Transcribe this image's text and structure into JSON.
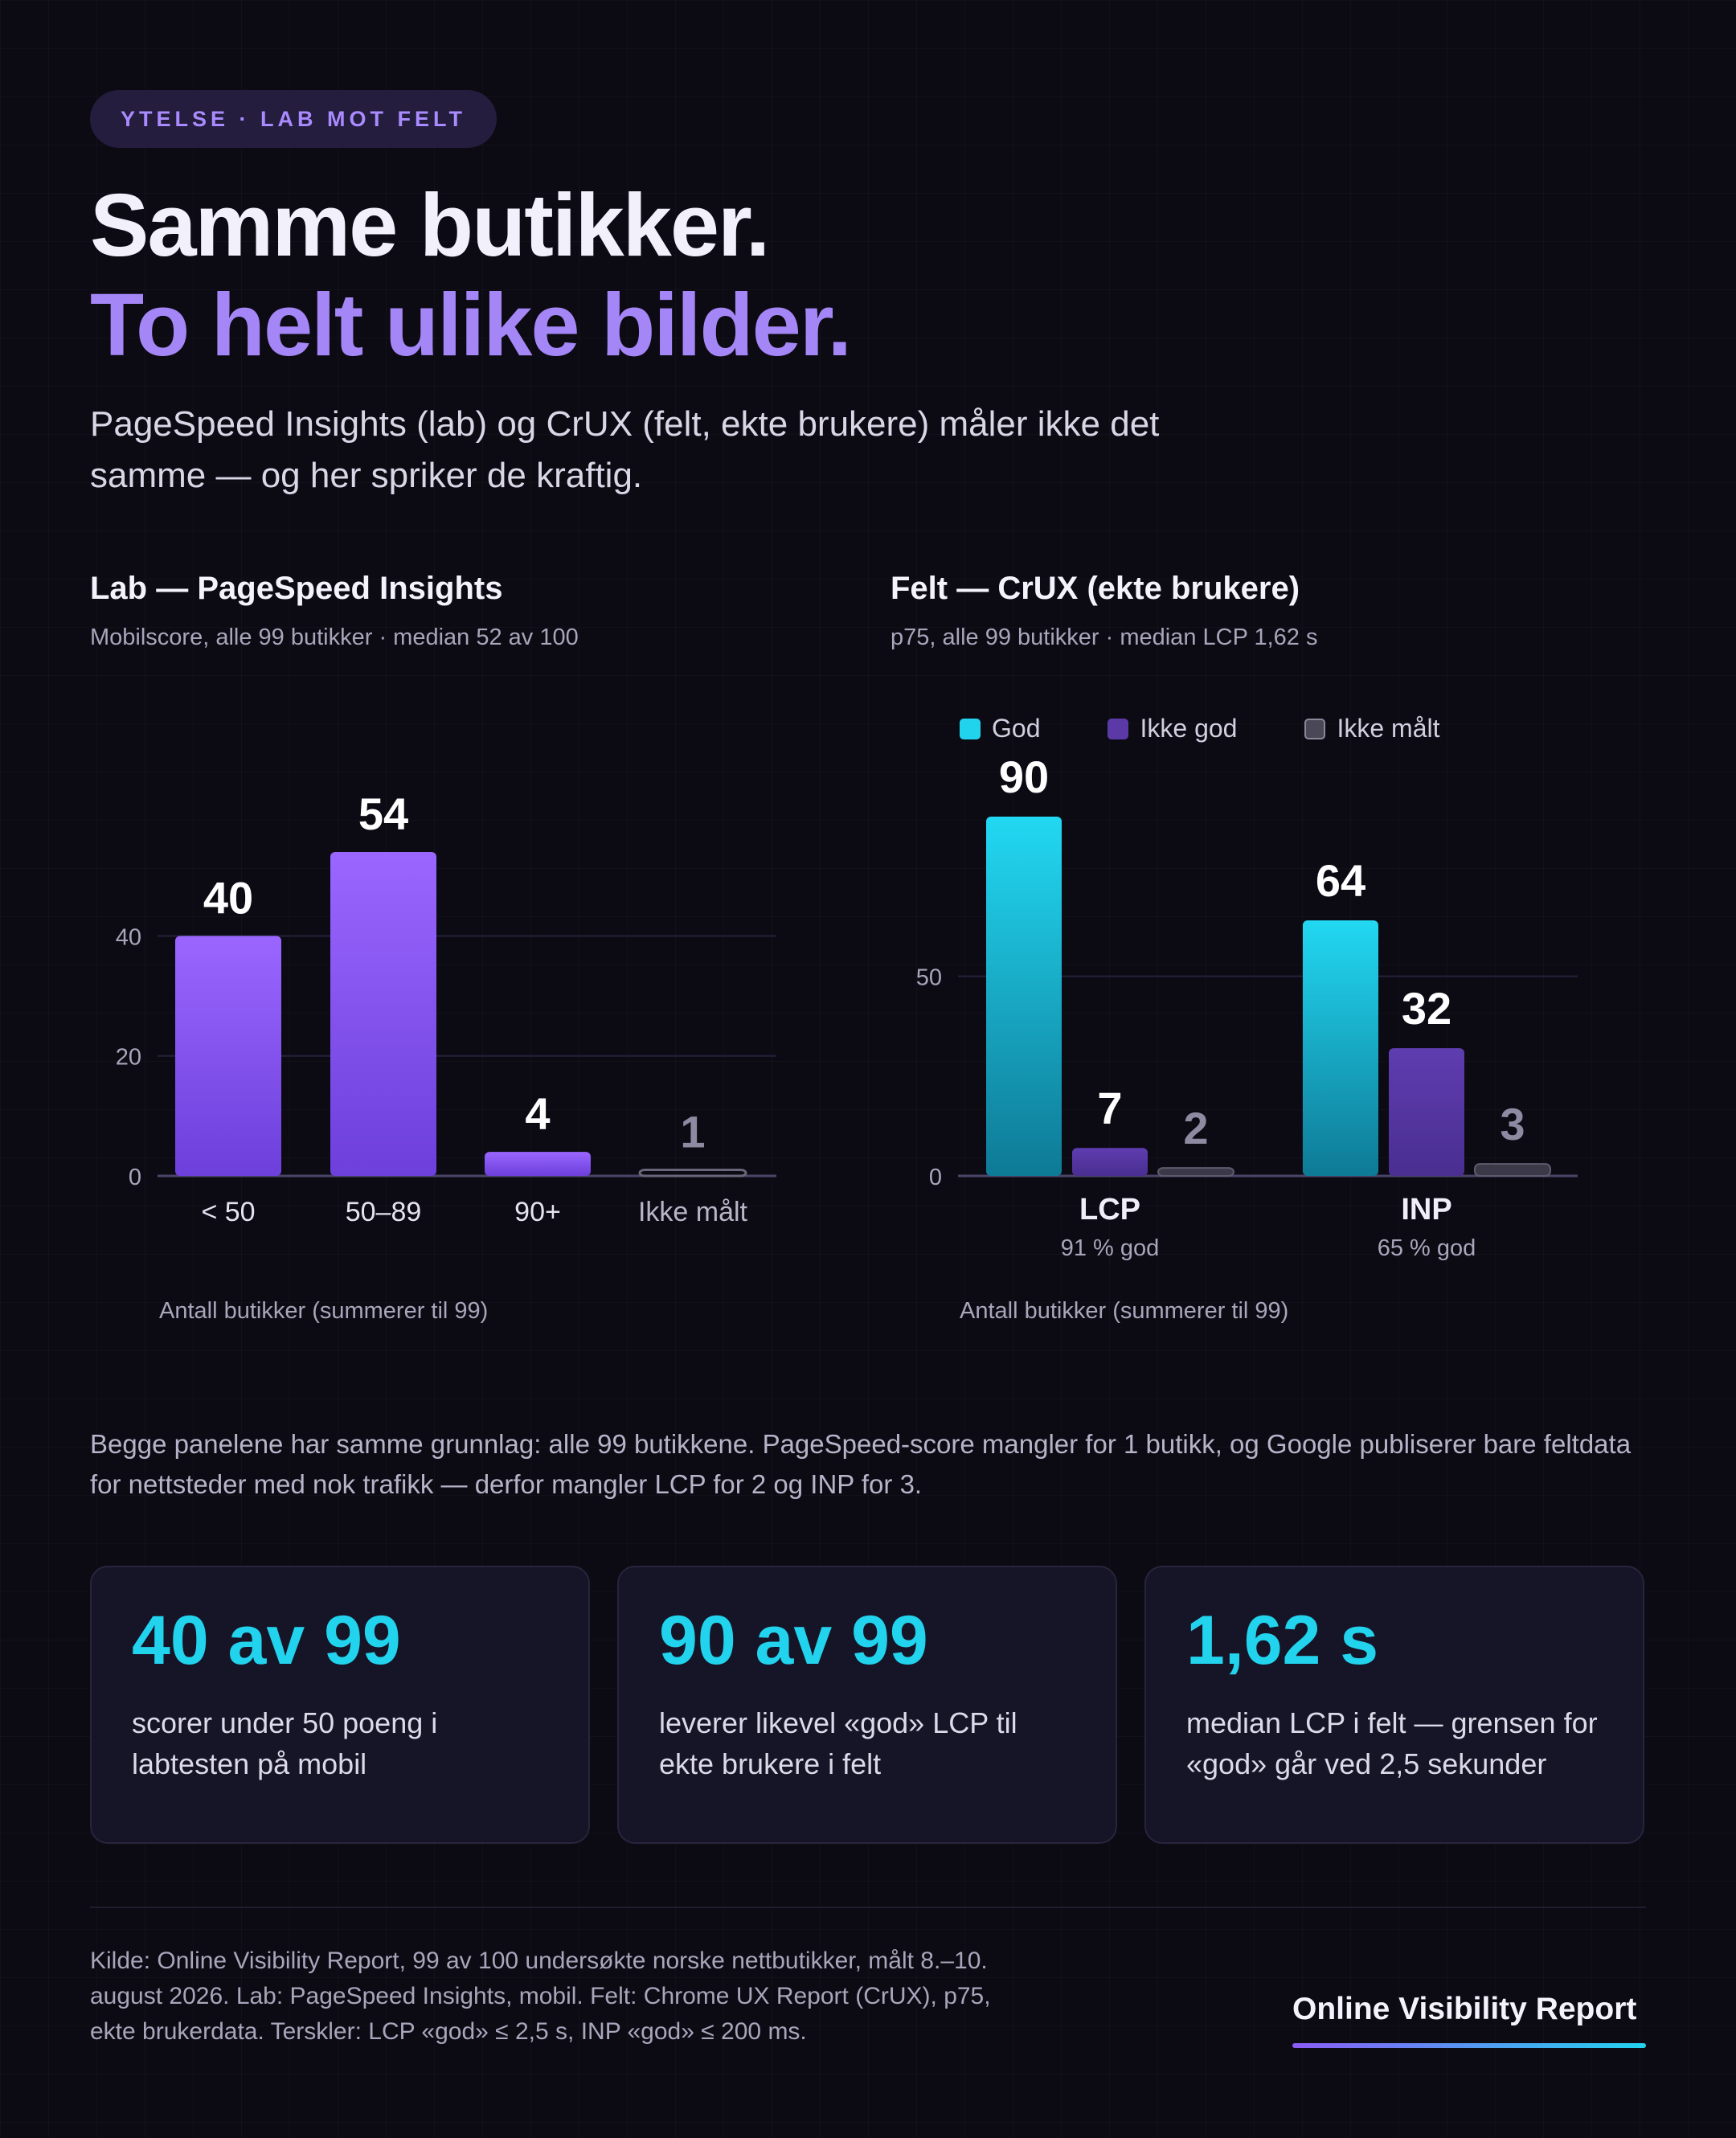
{
  "header": {
    "eyebrow": "YTELSE · LAB MOT FELT",
    "title_line1": "Samme butikker.",
    "title_line2": "To helt ulike bilder.",
    "lead": "PageSpeed Insights (lab) og CrUX (felt, ekte brukere) måler ikke det samme — og her spriker de kraftig."
  },
  "panels": {
    "lab": {
      "title": "Lab — PageSpeed Insights",
      "subtitle": "Mobilscore, alle 99 butikker · median 52 av 100",
      "axis_caption": "Antall butikker (summerer til 99)"
    },
    "field": {
      "title": "Felt — CrUX (ekte brukere)",
      "subtitle": "p75, alle 99 butikker · median LCP 1,62 s",
      "axis_caption": "Antall butikker (summerer til 99)"
    }
  },
  "chart_data": [
    {
      "type": "bar",
      "title": "Lab — PageSpeed Insights",
      "categories": [
        "< 50",
        "50–89",
        "90+",
        "Ikke målt"
      ],
      "values": [
        40,
        54,
        4,
        1
      ],
      "ylim": [
        0,
        54
      ],
      "yticks": [
        0,
        20,
        40
      ],
      "xlabel": "Antall butikker (summerer til 99)",
      "grid": true,
      "colors": [
        "#8b5cf6",
        "#8b5cf6",
        "#8b5cf6",
        "#5a5668"
      ]
    },
    {
      "type": "bar",
      "title": "Felt — CrUX (ekte brukere)",
      "categories": [
        "LCP",
        "INP"
      ],
      "category_notes": [
        "91 % god",
        "65 % god"
      ],
      "series": [
        {
          "name": "God",
          "values": [
            90,
            64
          ],
          "color": "#22d3ee"
        },
        {
          "name": "Ikke god",
          "values": [
            7,
            32
          ],
          "color": "#5b3aa8"
        },
        {
          "name": "Ikke målt",
          "values": [
            2,
            3
          ],
          "color": "#4a4756"
        }
      ],
      "ylim": [
        0,
        90
      ],
      "yticks": [
        0,
        50
      ],
      "xlabel": "Antall butikker (summerer til 99)",
      "legend": "top",
      "grid": true
    }
  ],
  "note": "Begge panelene har samme grunnlag: alle 99 butikkene. PageSpeed-score mangler for 1 butikk, og Google publiserer bare feltdata for nettsteder med nok trafikk — derfor mangler LCP for 2 og INP for 3.",
  "cards": [
    {
      "value": "40 av 99",
      "text": "scorer under 50 poeng i labtesten på mobil"
    },
    {
      "value": "90 av 99",
      "text": "leverer likevel «god» LCP til ekte brukere i felt"
    },
    {
      "value": "1,62 s",
      "text": "median LCP i felt — grensen for «god» går ved 2,5 sekunder"
    }
  ],
  "footer": {
    "source": "Kilde: Online Visibility Report, 99 av 100 undersøkte norske nettbutikker, målt 8.–10. august 2026. Lab: PageSpeed Insights, mobil. Felt: Chrome UX Report (CrUX), p75, ekte brukerdata. Terskler: LCP «god» ≤ 2,5 s, INP «god» ≤ 200 ms.",
    "brand": "Online Visibility Report"
  }
}
